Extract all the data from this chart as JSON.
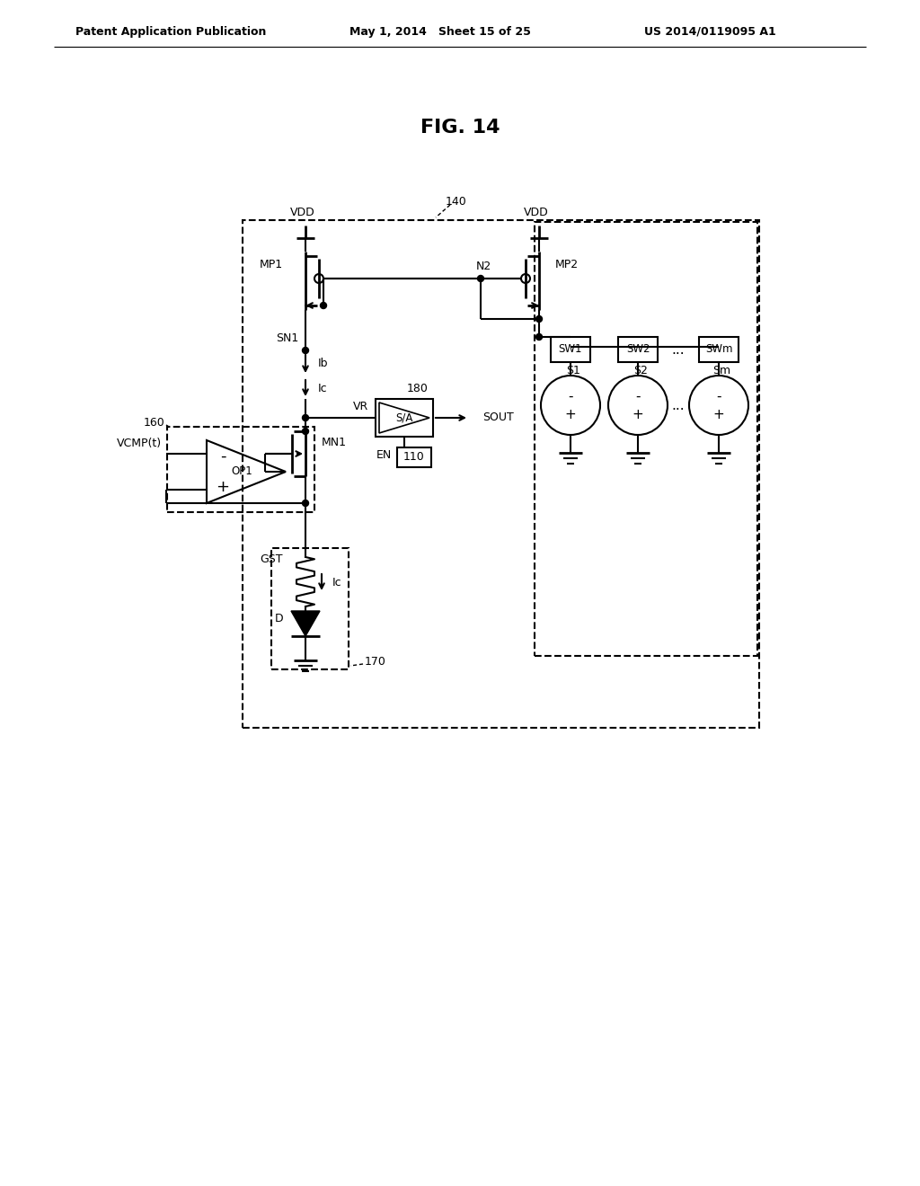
{
  "title": "FIG. 14",
  "header_left": "Patent Application Publication",
  "header_center": "May 1, 2014   Sheet 15 of 25",
  "header_right": "US 2014/0119095 A1",
  "bg_color": "#ffffff",
  "label_140": "140",
  "label_160": "160",
  "label_170": "170",
  "label_180": "180",
  "label_110": "110",
  "label_VDD": "VDD",
  "label_MP1": "MP1",
  "label_MP2": "MP2",
  "label_MN1": "MN1",
  "label_SN1": "SN1",
  "label_N2": "N2",
  "label_Ib": "Ib",
  "label_Ic": "Ic",
  "label_VCMP": "VCMP(t)",
  "label_OP1": "OP1",
  "label_GST": "GST",
  "label_D": "D",
  "label_SW1": "SW1",
  "label_SW2": "SW2",
  "label_SWm": "SWm",
  "label_S1": "S1",
  "label_S2": "S2",
  "label_Sm": "Sm",
  "label_SA": "S/A",
  "label_VR": "VR",
  "label_EN": "EN",
  "label_SOUT": "SOUT",
  "label_dots": "..."
}
